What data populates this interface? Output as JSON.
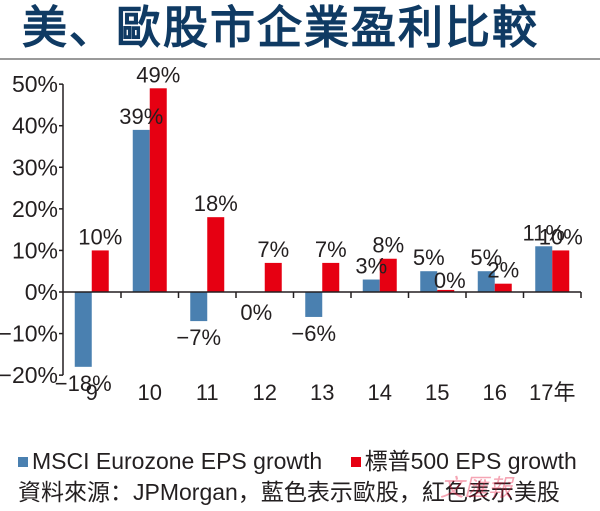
{
  "title": "美、歐股市企業盈利比較",
  "chart_data": {
    "type": "bar",
    "title": "美、歐股市企業盈利比較",
    "xlabel": "",
    "ylabel": "",
    "categories": [
      "9",
      "10",
      "11",
      "12",
      "13",
      "14",
      "15",
      "16",
      "17年"
    ],
    "series": [
      {
        "name": "MSCI Eurozone  EPS growth",
        "color": "#4a80b0",
        "values": [
          -18,
          39,
          -7,
          0,
          -6,
          3,
          5,
          5,
          11
        ],
        "labels": [
          "−18%",
          "39%",
          "−7%",
          "0%",
          "−6%",
          "3%",
          "5%",
          "5%",
          "11%"
        ]
      },
      {
        "name": "標普500  EPS  growth",
        "color": "#e60012",
        "values": [
          10,
          49,
          18,
          7,
          7,
          8,
          0.5,
          2,
          10
        ],
        "labels": [
          "10%",
          "49%",
          "18%",
          "7%",
          "7%",
          "8%",
          "0%",
          "2%",
          "10%"
        ]
      }
    ],
    "ylim": [
      -20,
      50
    ],
    "yticks": [
      50,
      40,
      30,
      20,
      10,
      0,
      -10,
      -20
    ],
    "ytick_labels": [
      "50%",
      "40%",
      "30%",
      "20%",
      "10%",
      "0%",
      "−10%",
      "−20%"
    ],
    "grid": false,
    "legend_position": "bottom-left"
  },
  "legend": [
    {
      "label": "MSCI Eurozone  EPS growth",
      "color": "#4a80b0"
    },
    {
      "label": "標普500  EPS  growth",
      "color": "#e60012"
    }
  ],
  "source": "資料來源：JPMorgan，藍色表示歐股，紅色表示美股",
  "watermark": "文匯報"
}
